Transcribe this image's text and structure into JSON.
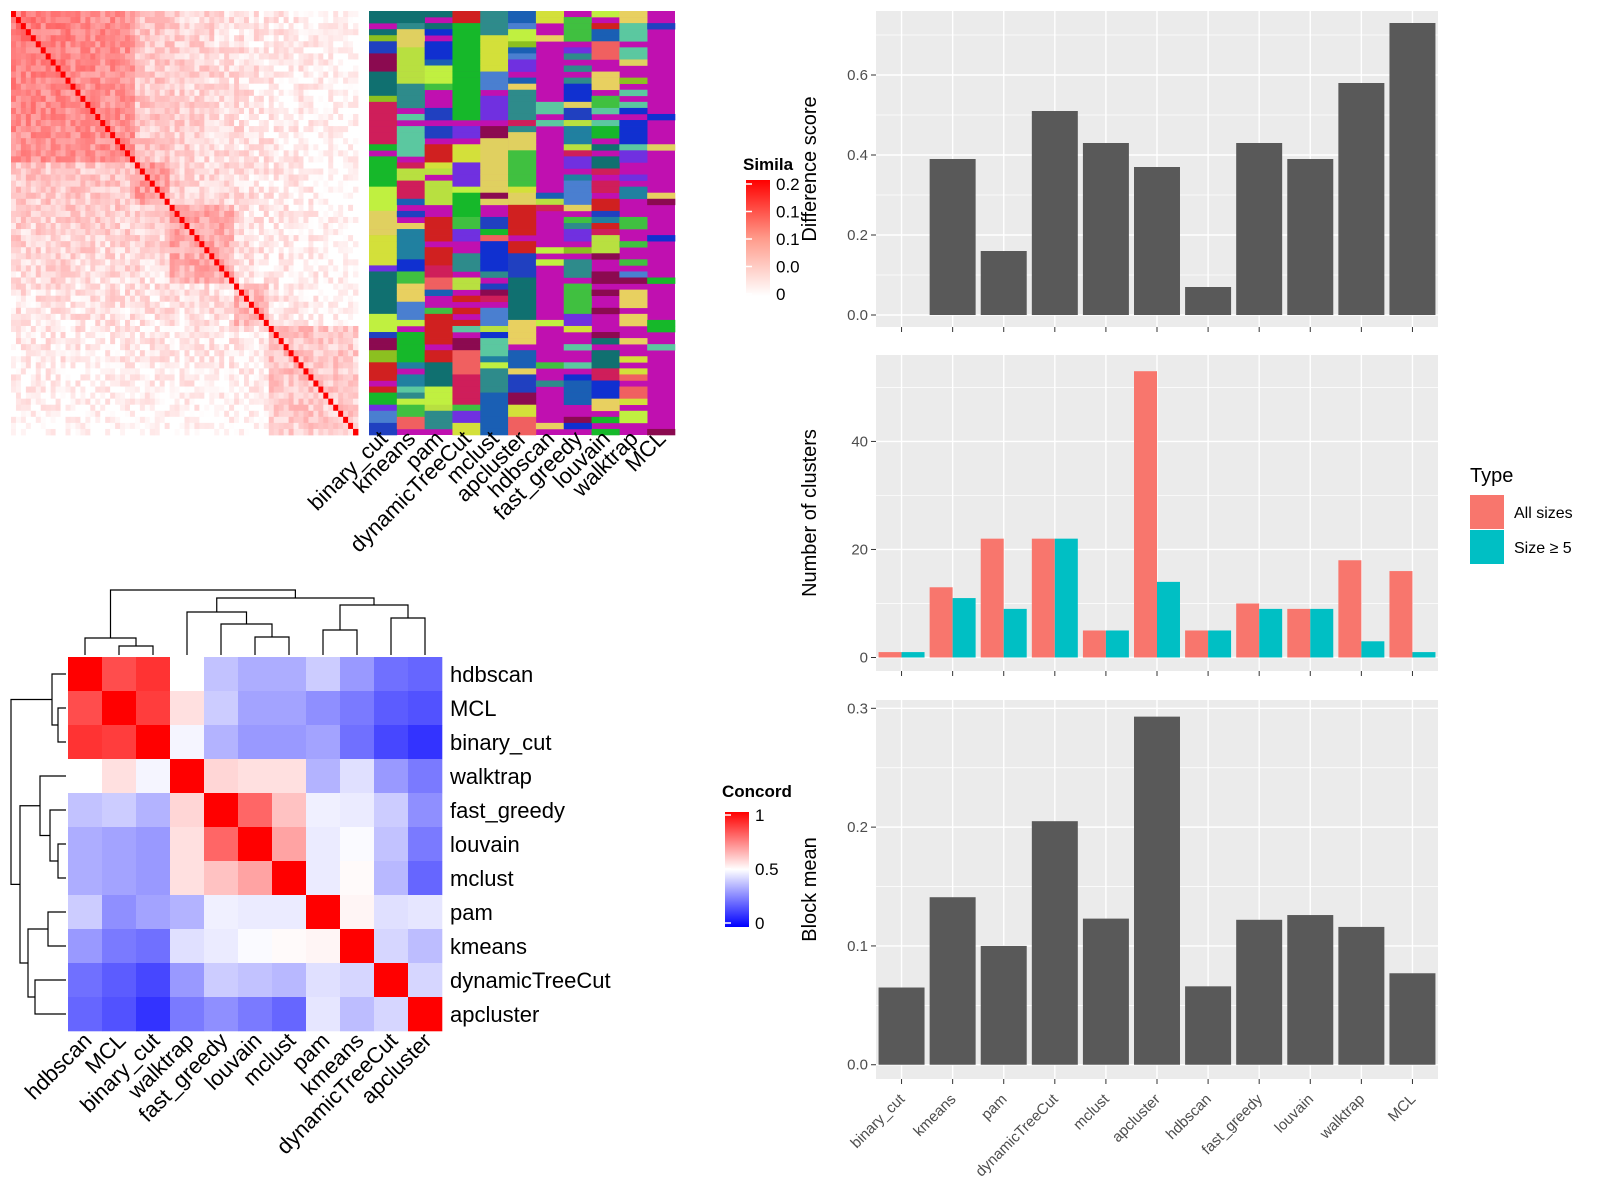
{
  "methods": [
    "binary_cut",
    "kmeans",
    "pam",
    "dynamicTreeCut",
    "mclust",
    "apcluster",
    "hdbscan",
    "fast_greedy",
    "louvain",
    "walktrap",
    "MCL"
  ],
  "similarity_heatmap": {
    "legend_title": "Simila",
    "legend_ticks": [
      "0.2",
      "0.1",
      "0.1",
      "0.0",
      "0"
    ],
    "palette": [
      "#8b0a50",
      "#1a5fb4",
      "#d3e03a",
      "#16b82a",
      "#4a7fd0",
      "#cf1e5a",
      "#5bc8a0",
      "#e8d060",
      "#8cc020",
      "#1030d0",
      "#2e8b8b",
      "#d02020",
      "#b8e040",
      "#40c040",
      "#7030e0",
      "#e0d060",
      "#107070",
      "#2040c0",
      "#f06060",
      "#c0f040",
      "#2080a0"
    ],
    "background_color": "#c010b0"
  },
  "concordance_heatmap": {
    "legend_title": "Concord",
    "legend_ticks": [
      "1",
      "0.5",
      "0"
    ],
    "row_order": [
      "hdbscan",
      "MCL",
      "binary_cut",
      "walktrap",
      "fast_greedy",
      "louvain",
      "mclust",
      "pam",
      "kmeans",
      "dynamicTreeCut",
      "apcluster"
    ],
    "col_order": [
      "hdbscan",
      "MCL",
      "binary_cut",
      "walktrap",
      "fast_greedy",
      "louvain",
      "mclust",
      "pam",
      "kmeans",
      "dynamicTreeCut",
      "apcluster"
    ],
    "values": [
      [
        1.0,
        0.85,
        0.9,
        0.5,
        0.38,
        0.34,
        0.34,
        0.4,
        0.3,
        0.22,
        0.2
      ],
      [
        0.85,
        1.0,
        0.88,
        0.56,
        0.4,
        0.32,
        0.32,
        0.28,
        0.24,
        0.18,
        0.16
      ],
      [
        0.9,
        0.88,
        1.0,
        0.48,
        0.35,
        0.3,
        0.3,
        0.32,
        0.22,
        0.14,
        0.1
      ],
      [
        0.5,
        0.56,
        0.48,
        1.0,
        0.58,
        0.56,
        0.56,
        0.35,
        0.44,
        0.3,
        0.24
      ],
      [
        0.38,
        0.4,
        0.35,
        0.58,
        1.0,
        0.8,
        0.62,
        0.47,
        0.46,
        0.4,
        0.28
      ],
      [
        0.34,
        0.32,
        0.3,
        0.56,
        0.8,
        1.0,
        0.68,
        0.46,
        0.49,
        0.38,
        0.24
      ],
      [
        0.34,
        0.32,
        0.3,
        0.56,
        0.62,
        0.68,
        1.0,
        0.46,
        0.51,
        0.36,
        0.2
      ],
      [
        0.4,
        0.28,
        0.32,
        0.35,
        0.47,
        0.46,
        0.46,
        1.0,
        0.52,
        0.44,
        0.45
      ],
      [
        0.3,
        0.24,
        0.22,
        0.44,
        0.46,
        0.49,
        0.51,
        0.52,
        1.0,
        0.42,
        0.37
      ],
      [
        0.22,
        0.18,
        0.14,
        0.3,
        0.4,
        0.38,
        0.36,
        0.44,
        0.42,
        1.0,
        0.42
      ],
      [
        0.2,
        0.16,
        0.1,
        0.24,
        0.28,
        0.24,
        0.2,
        0.45,
        0.37,
        0.42,
        1.0
      ]
    ],
    "colors": {
      "low": "#0000ff",
      "mid": "#ffffff",
      "high": "#ff0000"
    }
  },
  "chart_data": [
    {
      "type": "bar",
      "categories": [
        "binary_cut",
        "kmeans",
        "pam",
        "dynamicTreeCut",
        "mclust",
        "apcluster",
        "hdbscan",
        "fast_greedy",
        "louvain",
        "walktrap",
        "MCL"
      ],
      "values": [
        0.0,
        0.39,
        0.16,
        0.51,
        0.43,
        0.37,
        0.07,
        0.43,
        0.39,
        0.58,
        0.73
      ],
      "ylabel": "Difference score",
      "ylim": [
        -0.03,
        0.76
      ],
      "yticks": [
        "0.0",
        "0.2",
        "0.4",
        "0.6"
      ],
      "color": "#595959"
    },
    {
      "type": "bar",
      "categories": [
        "binary_cut",
        "kmeans",
        "pam",
        "dynamicTreeCut",
        "mclust",
        "apcluster",
        "hdbscan",
        "fast_greedy",
        "louvain",
        "walktrap",
        "MCL"
      ],
      "series": [
        {
          "name": "All sizes",
          "values": [
            1,
            13,
            22,
            22,
            5,
            53,
            5,
            10,
            9,
            18,
            16
          ],
          "color": "#f8766d"
        },
        {
          "name": "Size ≥ 5",
          "values": [
            1,
            11,
            9,
            22,
            5,
            14,
            5,
            9,
            9,
            3,
            1
          ],
          "color": "#00bfc4"
        }
      ],
      "ylabel": "Number of clusters",
      "ylim": [
        -2.5,
        56
      ],
      "yticks": [
        "0",
        "20",
        "40"
      ],
      "legend_title": "Type"
    },
    {
      "type": "bar",
      "categories": [
        "binary_cut",
        "kmeans",
        "pam",
        "dynamicTreeCut",
        "mclust",
        "apcluster",
        "hdbscan",
        "fast_greedy",
        "louvain",
        "walktrap",
        "MCL"
      ],
      "values": [
        0.065,
        0.141,
        0.1,
        0.205,
        0.123,
        0.293,
        0.066,
        0.122,
        0.126,
        0.116,
        0.077
      ],
      "ylabel": "Block mean",
      "ylim": [
        -0.012,
        0.307
      ],
      "yticks": [
        "0.0",
        "0.1",
        "0.2",
        "0.3"
      ],
      "color": "#595959"
    }
  ]
}
